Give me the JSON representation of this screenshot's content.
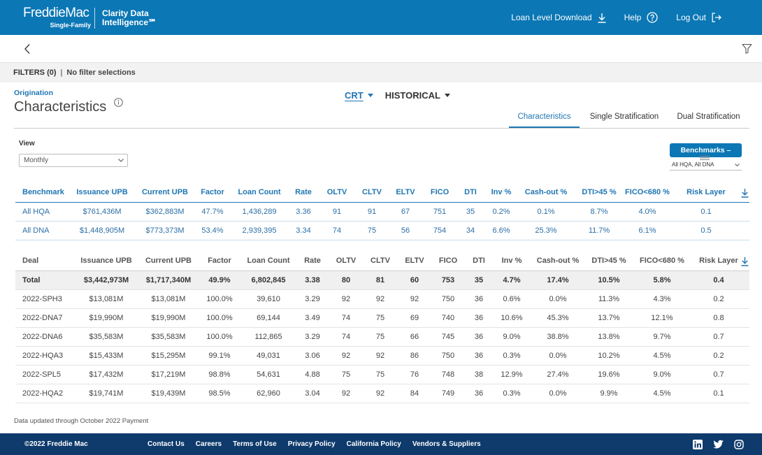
{
  "colors": {
    "brand_blue": "#0b77b5",
    "link_blue": "#1f76b3",
    "footer_navy": "#0e3a6c",
    "filter_bar": "#f2f2f2",
    "total_row_bg": "#f0f0f0"
  },
  "header": {
    "brand": "FreddieMac",
    "brand_sub": "Single-Family",
    "product_line1": "Clarity Data",
    "product_line2": "Intelligence℠",
    "nav": {
      "download": {
        "label": "Loan Level Download",
        "icon": "download-icon"
      },
      "help": {
        "label": "Help",
        "icon": "help-circle-icon"
      },
      "logout": {
        "label": "Log Out",
        "icon": "logout-icon"
      }
    }
  },
  "toolbar": {
    "back_icon": "chevron-left-icon",
    "filter_icon": "funnel-icon"
  },
  "filters": {
    "label": "FILTERS (0)",
    "separator": "|",
    "summary": "No filter selections"
  },
  "page": {
    "eyebrow": "Origination",
    "title": "Characteristics",
    "info_icon": "info-icon",
    "dataset_tabs": [
      {
        "label": "CRT",
        "active": true
      },
      {
        "label": "HISTORICAL",
        "active": false
      }
    ],
    "view_tabs": [
      {
        "label": "Characteristics",
        "active": true
      },
      {
        "label": "Single Stratification",
        "active": false
      },
      {
        "label": "Dual Stratification",
        "active": false
      }
    ]
  },
  "view": {
    "label": "View",
    "selected": "Monthly"
  },
  "benchmarks": {
    "button_label": "Benchmarks –",
    "selected": "All HQA, All DNA"
  },
  "benchmark_table": {
    "columns": [
      "Benchmark",
      "Issuance UPB",
      "Current UPB",
      "Factor",
      "Loan Count",
      "Rate",
      "OLTV",
      "CLTV",
      "ELTV",
      "FICO",
      "DTI",
      "Inv %",
      "Cash-out %",
      "DTI>45 %",
      "FICO<680 %",
      "Risk Layer"
    ],
    "rows": [
      [
        "All HQA",
        "$761,436M",
        "$362,883M",
        "47.7%",
        "1,436,289",
        "3.36",
        "91",
        "91",
        "67",
        "751",
        "35",
        "0.2%",
        "0.1%",
        "8.7%",
        "4.0%",
        "0.1"
      ],
      [
        "All DNA",
        "$1,448,905M",
        "$773,373M",
        "53.4%",
        "2,939,395",
        "3.34",
        "74",
        "75",
        "56",
        "754",
        "34",
        "6.6%",
        "25.3%",
        "11.7%",
        "6.1%",
        "0.5"
      ]
    ]
  },
  "deal_table": {
    "columns": [
      "Deal",
      "Issuance UPB",
      "Current UPB",
      "Factor",
      "Loan Count",
      "Rate",
      "OLTV",
      "CLTV",
      "ELTV",
      "FICO",
      "DTI",
      "Inv %",
      "Cash-out %",
      "DTI>45 %",
      "FICO<680 %",
      "Risk Layer"
    ],
    "total": [
      "Total",
      "$3,442,973M",
      "$1,717,340M",
      "49.9%",
      "6,802,845",
      "3.38",
      "80",
      "81",
      "60",
      "753",
      "35",
      "4.7%",
      "17.4%",
      "10.5%",
      "5.8%",
      "0.4"
    ],
    "rows": [
      [
        "2022-SPH3",
        "$13,081M",
        "$13,081M",
        "100.0%",
        "39,610",
        "3.29",
        "92",
        "92",
        "92",
        "750",
        "36",
        "0.6%",
        "0.0%",
        "11.3%",
        "4.3%",
        "0.2"
      ],
      [
        "2022-DNA7",
        "$19,990M",
        "$19,990M",
        "100.0%",
        "69,144",
        "3.49",
        "74",
        "75",
        "69",
        "740",
        "36",
        "10.6%",
        "45.3%",
        "13.7%",
        "12.1%",
        "0.8"
      ],
      [
        "2022-DNA6",
        "$35,583M",
        "$35,583M",
        "100.0%",
        "112,865",
        "3.29",
        "74",
        "75",
        "66",
        "745",
        "36",
        "9.0%",
        "38.8%",
        "13.8%",
        "9.7%",
        "0.7"
      ],
      [
        "2022-HQA3",
        "$15,433M",
        "$15,295M",
        "99.1%",
        "49,031",
        "3.06",
        "92",
        "92",
        "86",
        "750",
        "36",
        "0.3%",
        "0.0%",
        "10.2%",
        "4.5%",
        "0.2"
      ],
      [
        "2022-SPL5",
        "$17,432M",
        "$17,219M",
        "98.8%",
        "54,631",
        "4.88",
        "75",
        "75",
        "76",
        "748",
        "38",
        "12.9%",
        "27.4%",
        "19.6%",
        "9.0%",
        "0.7"
      ],
      [
        "2022-HQA2",
        "$19,741M",
        "$19,439M",
        "98.5%",
        "62,960",
        "3.04",
        "92",
        "92",
        "84",
        "749",
        "36",
        "0.3%",
        "0.0%",
        "9.9%",
        "4.5%",
        "0.1"
      ]
    ]
  },
  "data_note": "Data updated through October 2022 Payment",
  "footer": {
    "copyright": "©2022 Freddie Mac",
    "links": [
      "Contact Us",
      "Careers",
      "Terms of Use",
      "Privacy Policy",
      "California Policy",
      "Vendors & Suppliers"
    ],
    "social_icons": [
      "linkedin-icon",
      "twitter-icon",
      "instagram-icon"
    ]
  }
}
